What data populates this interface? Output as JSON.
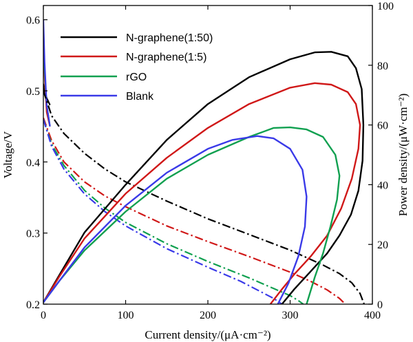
{
  "chart_data": {
    "type": "line",
    "title": "",
    "xlabel": "Current density/(μA·cm⁻²)",
    "ylabel_left": "Voltage/V",
    "ylabel_right": "Power density/(μW·cm⁻²)",
    "xlim": [
      0,
      400
    ],
    "ylim_left": [
      0.2,
      0.62
    ],
    "ylim_right": [
      0,
      100
    ],
    "x_ticks": [
      0,
      100,
      200,
      300,
      400
    ],
    "y_left_ticks": [
      0.2,
      0.3,
      0.4,
      0.5,
      0.6
    ],
    "y_right_ticks": [
      0,
      20,
      40,
      60,
      80,
      100
    ],
    "legend": [
      {
        "label": "N-graphene(1:50)",
        "color": "#000000"
      },
      {
        "label": "N-graphene(1:5)",
        "color": "#d01818"
      },
      {
        "label": "rGO",
        "color": "#10a050"
      },
      {
        "label": "Blank",
        "color": "#3a3ae8"
      }
    ],
    "polarization_series": [
      {
        "name": "N-graphene(1:50)",
        "color": "#000000",
        "axis": "left",
        "style": "dash-dot",
        "points": [
          [
            0,
            0.5
          ],
          [
            10,
            0.465
          ],
          [
            25,
            0.44
          ],
          [
            50,
            0.412
          ],
          [
            75,
            0.39
          ],
          [
            100,
            0.372
          ],
          [
            150,
            0.345
          ],
          [
            200,
            0.32
          ],
          [
            250,
            0.298
          ],
          [
            300,
            0.276
          ],
          [
            340,
            0.255
          ],
          [
            360,
            0.243
          ],
          [
            375,
            0.23
          ],
          [
            385,
            0.215
          ],
          [
            390,
            0.2
          ]
        ]
      },
      {
        "name": "N-graphene(1:5)",
        "color": "#d01818",
        "axis": "left",
        "style": "dash-dot",
        "points": [
          [
            0,
            0.462
          ],
          [
            10,
            0.43
          ],
          [
            25,
            0.4
          ],
          [
            50,
            0.372
          ],
          [
            75,
            0.352
          ],
          [
            100,
            0.337
          ],
          [
            150,
            0.31
          ],
          [
            200,
            0.288
          ],
          [
            250,
            0.267
          ],
          [
            300,
            0.245
          ],
          [
            325,
            0.232
          ],
          [
            345,
            0.22
          ],
          [
            360,
            0.208
          ],
          [
            367,
            0.2
          ]
        ]
      },
      {
        "name": "rGO",
        "color": "#10a050",
        "axis": "left",
        "style": "dash-dot",
        "points": [
          [
            0,
            0.46
          ],
          [
            10,
            0.425
          ],
          [
            25,
            0.395
          ],
          [
            50,
            0.36
          ],
          [
            75,
            0.335
          ],
          [
            100,
            0.315
          ],
          [
            150,
            0.285
          ],
          [
            200,
            0.26
          ],
          [
            250,
            0.237
          ],
          [
            280,
            0.222
          ],
          [
            300,
            0.212
          ],
          [
            310,
            0.205
          ],
          [
            316,
            0.2
          ]
        ]
      },
      {
        "name": "Blank",
        "color": "#3a3ae8",
        "axis": "left",
        "style": "dash-dot",
        "points": [
          [
            0,
            0.46
          ],
          [
            10,
            0.422
          ],
          [
            25,
            0.39
          ],
          [
            50,
            0.355
          ],
          [
            75,
            0.33
          ],
          [
            100,
            0.31
          ],
          [
            150,
            0.278
          ],
          [
            200,
            0.252
          ],
          [
            240,
            0.232
          ],
          [
            265,
            0.217
          ],
          [
            280,
            0.208
          ],
          [
            290,
            0.2
          ]
        ]
      }
    ],
    "power_series": [
      {
        "name": "N-graphene(1:50)",
        "color": "#000000",
        "axis": "right",
        "style": "solid",
        "points": [
          [
            0,
            0.6
          ],
          [
            20,
            10
          ],
          [
            50,
            24
          ],
          [
            100,
            40
          ],
          [
            150,
            55
          ],
          [
            200,
            67
          ],
          [
            250,
            76
          ],
          [
            300,
            82
          ],
          [
            330,
            84.3
          ],
          [
            350,
            84.5
          ],
          [
            370,
            83
          ],
          [
            380,
            79
          ],
          [
            387,
            72
          ],
          [
            389,
            60
          ],
          [
            388,
            48
          ],
          [
            383,
            38
          ],
          [
            374,
            30
          ],
          [
            360,
            23
          ],
          [
            345,
            17
          ],
          [
            325,
            11
          ],
          [
            305,
            5
          ],
          [
            290,
            0
          ]
        ]
      },
      {
        "name": "N-graphene(1:5)",
        "color": "#d01818",
        "axis": "right",
        "style": "solid",
        "points": [
          [
            0,
            0.6
          ],
          [
            20,
            9.5
          ],
          [
            50,
            22
          ],
          [
            100,
            37
          ],
          [
            150,
            49
          ],
          [
            200,
            59
          ],
          [
            250,
            67
          ],
          [
            300,
            72.5
          ],
          [
            330,
            74
          ],
          [
            350,
            73.5
          ],
          [
            370,
            71
          ],
          [
            380,
            67
          ],
          [
            385,
            60
          ],
          [
            383,
            52
          ],
          [
            375,
            42
          ],
          [
            362,
            32
          ],
          [
            345,
            23
          ],
          [
            325,
            16
          ],
          [
            305,
            10
          ],
          [
            290,
            5
          ],
          [
            276,
            0
          ]
        ]
      },
      {
        "name": "rGO",
        "color": "#10a050",
        "axis": "right",
        "style": "solid",
        "points": [
          [
            0,
            0.6
          ],
          [
            20,
            8
          ],
          [
            50,
            18
          ],
          [
            100,
            31
          ],
          [
            150,
            42
          ],
          [
            200,
            50
          ],
          [
            250,
            56
          ],
          [
            280,
            59
          ],
          [
            300,
            59.2
          ],
          [
            320,
            58.5
          ],
          [
            340,
            56
          ],
          [
            355,
            50
          ],
          [
            360,
            43
          ],
          [
            357,
            35
          ],
          [
            349,
            26
          ],
          [
            340,
            17
          ],
          [
            330,
            9
          ],
          [
            320,
            0
          ]
        ]
      },
      {
        "name": "Blank",
        "color": "#3a3ae8",
        "axis": "right",
        "style": "solid",
        "points": [
          [
            0,
            0.6
          ],
          [
            20,
            8
          ],
          [
            50,
            19
          ],
          [
            100,
            33
          ],
          [
            150,
            44
          ],
          [
            200,
            52
          ],
          [
            230,
            55
          ],
          [
            260,
            56.3
          ],
          [
            280,
            55.5
          ],
          [
            300,
            52
          ],
          [
            315,
            45
          ],
          [
            320,
            36
          ],
          [
            318,
            26
          ],
          [
            310,
            16
          ],
          [
            298,
            7
          ],
          [
            285,
            0
          ]
        ]
      }
    ],
    "voltage_ocv_spikes": [
      {
        "name": "N-graphene(1:50)",
        "color": "#000000",
        "points": [
          [
            0,
            0.51
          ],
          [
            1,
            0.5
          ],
          [
            4,
            0.49
          ],
          [
            8,
            0.48
          ]
        ]
      },
      {
        "name": "N-graphene(1:5)",
        "color": "#d01818",
        "points": [
          [
            0,
            0.57
          ],
          [
            1.5,
            0.52
          ],
          [
            4,
            0.47
          ],
          [
            8,
            0.45
          ]
        ]
      },
      {
        "name": "rGO",
        "color": "#10a050",
        "points": [
          [
            0,
            0.575
          ],
          [
            1.5,
            0.53
          ],
          [
            4,
            0.48
          ],
          [
            8,
            0.45
          ]
        ]
      },
      {
        "name": "Blank",
        "color": "#3a3ae8",
        "points": [
          [
            0,
            0.6
          ],
          [
            1.5,
            0.54
          ],
          [
            4,
            0.48
          ],
          [
            8,
            0.45
          ]
        ]
      }
    ]
  }
}
